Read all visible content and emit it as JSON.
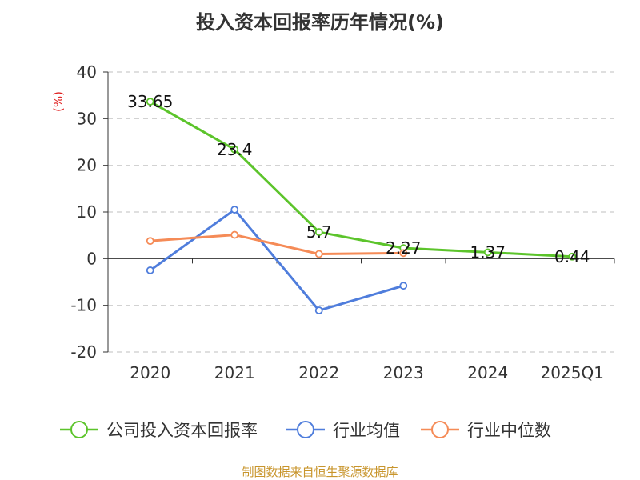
{
  "title": "投入资本回报率历年情况(%)",
  "source": "制图数据来自恒生聚源数据库",
  "chart_data": {
    "type": "line",
    "title": "投入资本回报率历年情况(%)",
    "ylabel": "(%)",
    "categories": [
      "2020",
      "2021",
      "2022",
      "2023",
      "2024",
      "2025Q1"
    ],
    "ylim": [
      -20,
      40
    ],
    "yticks": [
      40,
      30,
      20,
      10,
      0,
      -10,
      -20
    ],
    "grid": true,
    "legend_position": "bottom",
    "series": [
      {
        "name": "公司投入资本回报率",
        "color": "#5cc42b",
        "values": [
          33.65,
          23.4,
          5.7,
          2.27,
          1.37,
          0.44
        ],
        "labels": [
          "33.65",
          "23.4",
          "5.7",
          "2.27",
          "1.37",
          "0.44"
        ]
      },
      {
        "name": "行业均值",
        "color": "#4f7ddc",
        "values": [
          -2.5,
          10.5,
          -11.1,
          -5.8,
          null,
          null
        ]
      },
      {
        "name": "行业中位数",
        "color": "#f58b57",
        "values": [
          3.8,
          5.1,
          1.0,
          1.2,
          null,
          null
        ]
      }
    ]
  }
}
